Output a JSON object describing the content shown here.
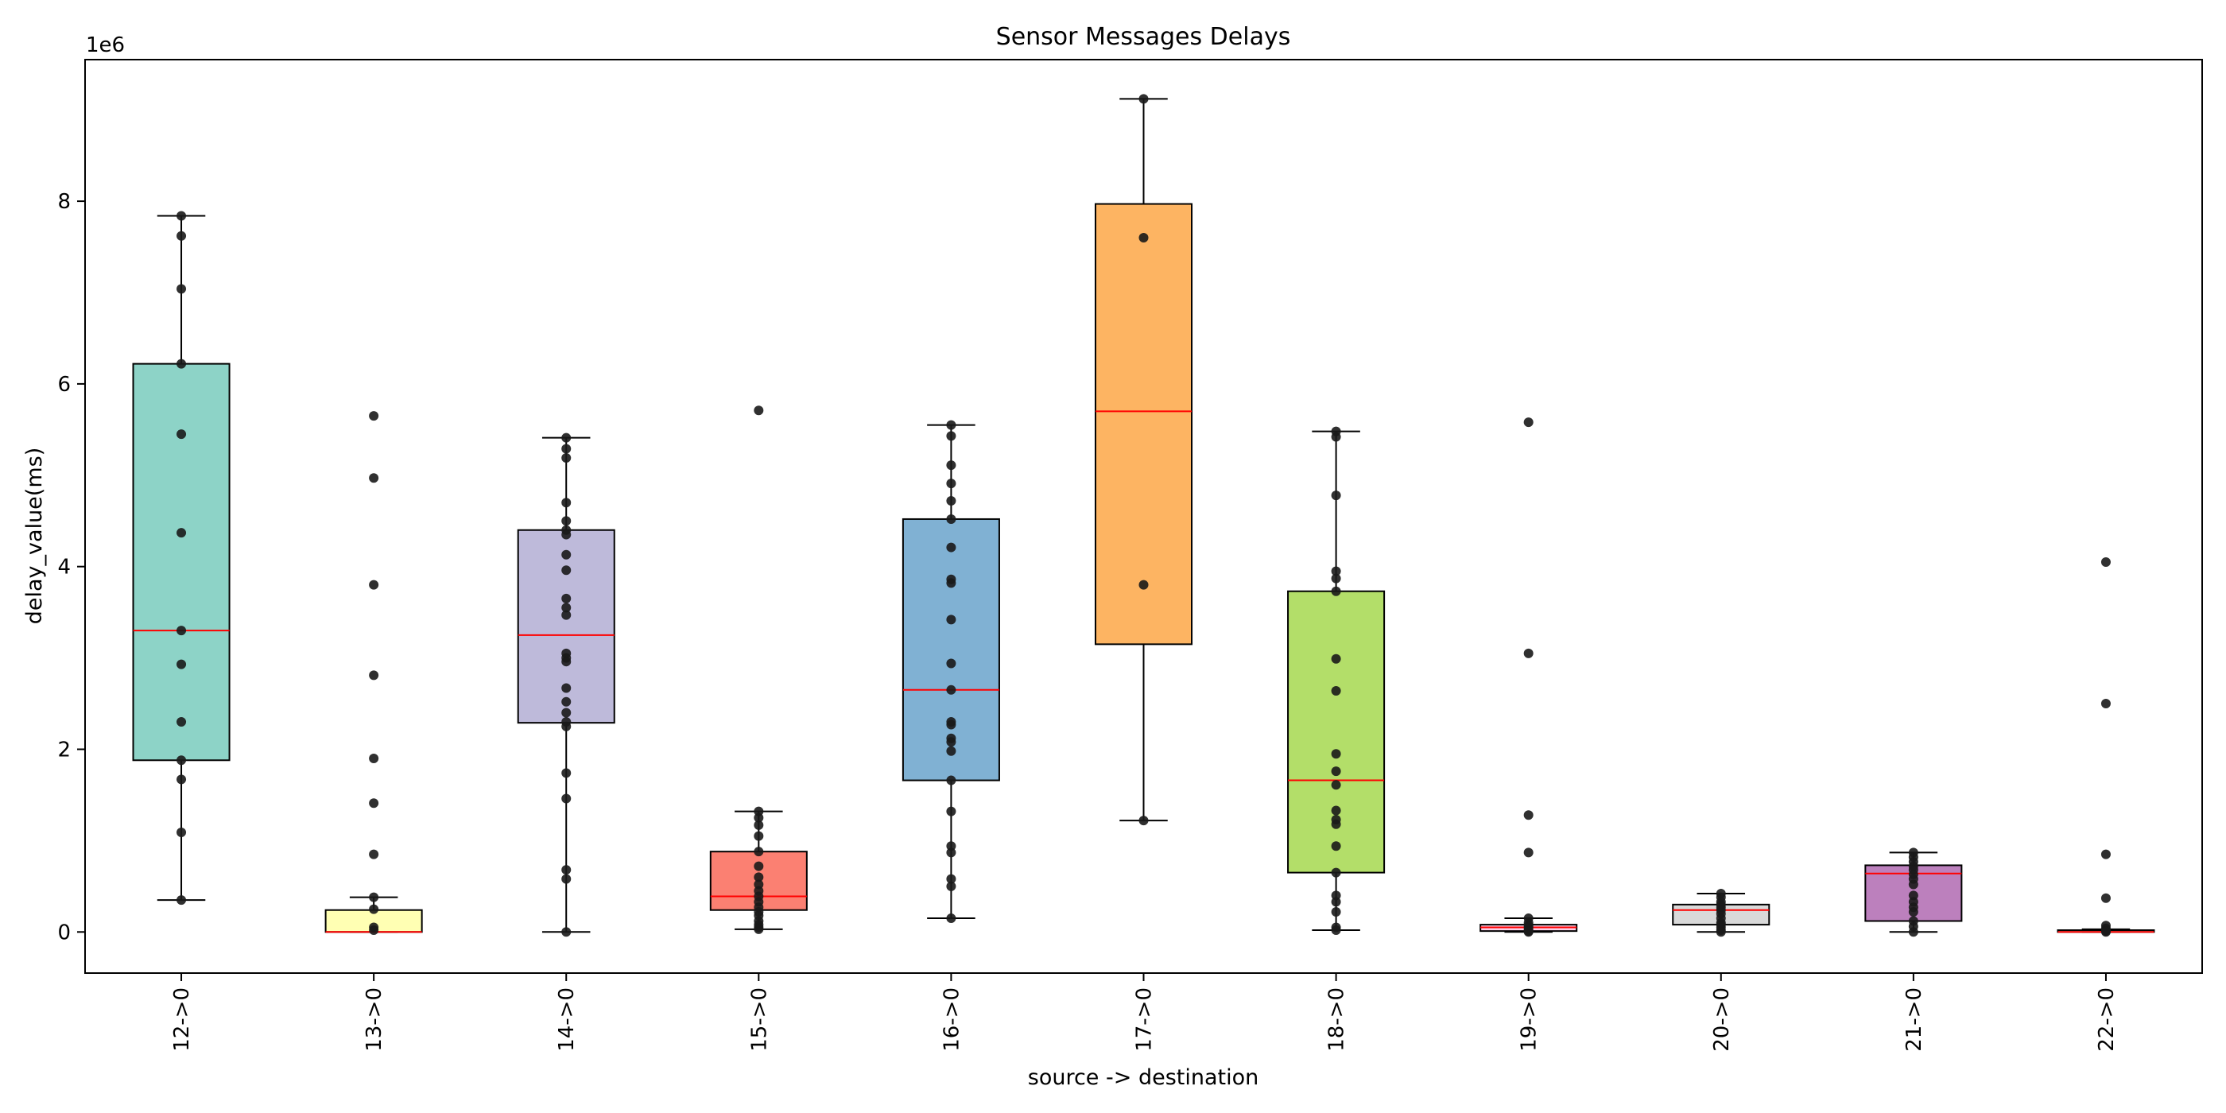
{
  "chart_data": {
    "type": "box",
    "title": "Sensor Messages Delays",
    "xlabel": "source -> destination",
    "ylabel": "delay_value(ms)",
    "y_offset_label": "1e6",
    "y_scale_factor": 1000000,
    "ylim": [
      -0.45,
      9.55
    ],
    "yticks": [
      0,
      2,
      4,
      6,
      8
    ],
    "grid": false,
    "legend": "none",
    "median_color": "#ff0000",
    "point_color": "#1a1a1a",
    "categories": [
      "12->0",
      "13->0",
      "14->0",
      "15->0",
      "16->0",
      "17->0",
      "18->0",
      "19->0",
      "20->0",
      "21->0",
      "22->0"
    ],
    "boxes": [
      {
        "label": "12->0",
        "color": "#8dd3c7",
        "whislo": 0.35,
        "q1": 1.88,
        "med": 3.3,
        "q3": 6.22,
        "whishi": 7.84,
        "points": [
          7.84,
          7.62,
          7.04,
          6.22,
          5.45,
          4.37,
          3.3,
          2.93,
          2.3,
          1.88,
          1.67,
          1.09,
          0.35
        ]
      },
      {
        "label": "13->0",
        "color": "#ffffb3",
        "whislo": 0.0,
        "q1": 0.0,
        "med": 0.0,
        "q3": 0.24,
        "whishi": 0.38,
        "points": [
          5.65,
          4.97,
          3.8,
          2.81,
          1.9,
          1.41,
          0.85,
          0.38,
          0.25,
          0.05,
          0.02
        ]
      },
      {
        "label": "14->0",
        "color": "#bebada",
        "whislo": 0.0,
        "q1": 2.29,
        "med": 3.25,
        "q3": 4.4,
        "whishi": 5.41,
        "points": [
          5.41,
          5.29,
          5.19,
          4.7,
          4.5,
          4.4,
          4.35,
          4.13,
          3.96,
          3.65,
          3.55,
          3.47,
          3.05,
          3.0,
          2.96,
          2.67,
          2.52,
          2.4,
          2.3,
          2.25,
          1.74,
          1.46,
          0.68,
          0.58,
          0.0
        ]
      },
      {
        "label": "15->0",
        "color": "#fb8072",
        "whislo": 0.03,
        "q1": 0.24,
        "med": 0.39,
        "q3": 0.88,
        "whishi": 1.32,
        "points": [
          5.71,
          1.32,
          1.25,
          1.17,
          1.05,
          0.88,
          0.72,
          0.6,
          0.52,
          0.45,
          0.39,
          0.33,
          0.27,
          0.22,
          0.18,
          0.12,
          0.08,
          0.05,
          0.03
        ]
      },
      {
        "label": "16->0",
        "color": "#80b1d3",
        "whislo": 0.15,
        "q1": 1.66,
        "med": 2.65,
        "q3": 4.52,
        "whishi": 5.55,
        "points": [
          5.55,
          5.43,
          5.11,
          4.91,
          4.72,
          4.52,
          4.21,
          3.86,
          3.82,
          3.42,
          2.94,
          2.65,
          2.3,
          2.27,
          2.12,
          2.08,
          1.98,
          1.66,
          1.32,
          0.94,
          0.87,
          0.58,
          0.5,
          0.15
        ]
      },
      {
        "label": "17->0",
        "color": "#fdb462",
        "whislo": 1.22,
        "q1": 3.15,
        "med": 5.7,
        "q3": 7.97,
        "whishi": 9.12,
        "points": [
          9.12,
          7.6,
          3.8,
          1.22
        ]
      },
      {
        "label": "18->0",
        "color": "#b3de69",
        "whislo": 0.02,
        "q1": 0.65,
        "med": 1.66,
        "q3": 3.73,
        "whishi": 5.48,
        "points": [
          5.48,
          5.42,
          4.78,
          3.95,
          3.87,
          3.73,
          2.99,
          2.64,
          1.95,
          1.76,
          1.61,
          1.33,
          1.23,
          1.18,
          0.94,
          0.65,
          0.4,
          0.33,
          0.22,
          0.05,
          0.02
        ]
      },
      {
        "label": "19->0",
        "color": "#fccde5",
        "whislo": 0.0,
        "q1": 0.01,
        "med": 0.05,
        "q3": 0.08,
        "whishi": 0.15,
        "points": [
          5.58,
          3.05,
          1.28,
          0.87,
          0.15,
          0.1,
          0.07,
          0.05,
          0.03,
          0.01,
          0.0
        ]
      },
      {
        "label": "20->0",
        "color": "#d9d9d9",
        "whislo": 0.0,
        "q1": 0.08,
        "med": 0.24,
        "q3": 0.3,
        "whishi": 0.42,
        "points": [
          0.42,
          0.38,
          0.33,
          0.3,
          0.27,
          0.24,
          0.2,
          0.15,
          0.1,
          0.08,
          0.05,
          0.02,
          0.0
        ]
      },
      {
        "label": "21->0",
        "color": "#bc80bd",
        "whislo": 0.0,
        "q1": 0.12,
        "med": 0.64,
        "q3": 0.73,
        "whishi": 0.87,
        "points": [
          0.87,
          0.82,
          0.77,
          0.72,
          0.68,
          0.63,
          0.58,
          0.52,
          0.4,
          0.33,
          0.27,
          0.22,
          0.12,
          0.06,
          0.0
        ]
      },
      {
        "label": "22->0",
        "color": "#ccebc5",
        "whislo": 0.0,
        "q1": 0.0,
        "med": 0.0,
        "q3": 0.02,
        "whishi": 0.03,
        "points": [
          4.05,
          2.5,
          0.85,
          0.37,
          0.07,
          0.04,
          0.02,
          0.01,
          0.0
        ]
      }
    ]
  }
}
